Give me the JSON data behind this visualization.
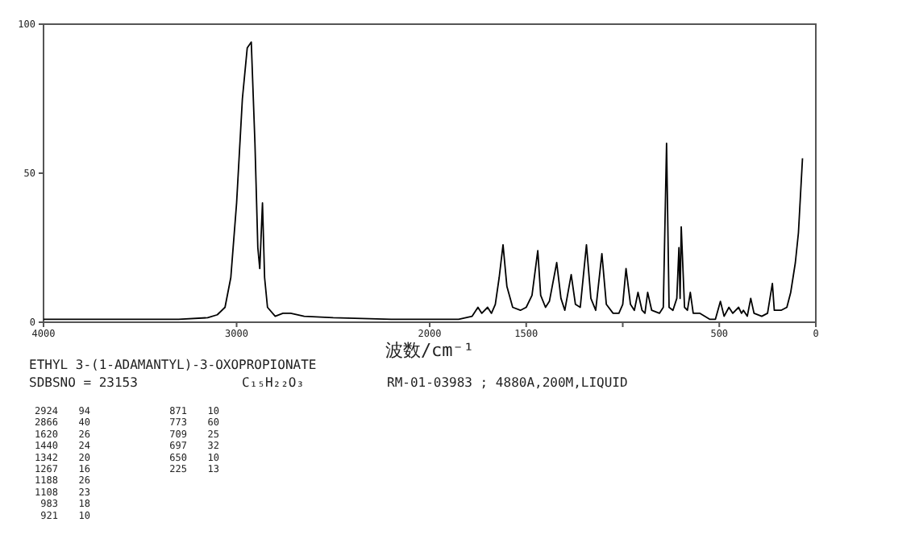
{
  "chart_data": {
    "type": "line",
    "title": "ETHYL 3-(1-ADAMANTYL)-3-OXOPROPIONATE",
    "xlabel": "波数/cm⁻¹",
    "x": [
      4000,
      3600,
      3300,
      3150,
      3100,
      3060,
      3030,
      3000,
      2970,
      2945,
      2924,
      2905,
      2890,
      2880,
      2866,
      2855,
      2840,
      2800,
      2760,
      2720,
      2650,
      2500,
      2200,
      2000,
      1850,
      1780,
      1750,
      1730,
      1700,
      1680,
      1660,
      1640,
      1620,
      1600,
      1570,
      1530,
      1500,
      1470,
      1440,
      1425,
      1400,
      1380,
      1342,
      1320,
      1300,
      1267,
      1245,
      1220,
      1188,
      1165,
      1140,
      1108,
      1085,
      1050,
      1020,
      1000,
      983,
      960,
      940,
      921,
      900,
      885,
      871,
      850,
      810,
      790,
      773,
      760,
      740,
      720,
      709,
      703,
      697,
      680,
      665,
      650,
      635,
      600,
      550,
      520,
      494,
      475,
      450,
      430,
      400,
      385,
      375,
      355,
      337,
      320,
      280,
      250,
      225,
      215,
      180,
      150,
      130,
      106,
      90,
      69
    ],
    "series": [
      {
        "color": "#000000",
        "values": [
          1,
          1,
          1,
          1.5,
          2.5,
          5,
          15,
          40,
          75,
          92,
          94,
          60,
          25,
          18,
          40,
          15,
          5,
          2,
          3,
          3,
          2,
          1.5,
          1,
          1,
          1,
          2,
          5,
          3,
          5,
          3,
          6,
          15,
          26,
          12,
          5,
          4,
          5,
          9,
          24,
          9,
          5,
          7,
          20,
          8,
          4,
          16,
          6,
          5,
          26,
          8,
          4,
          23,
          6,
          3,
          3,
          6,
          18,
          6,
          4,
          10,
          4,
          3,
          10,
          4,
          3,
          5,
          60,
          5,
          4,
          8,
          25,
          8,
          32,
          5,
          4,
          10,
          3,
          3,
          1,
          1,
          7,
          2,
          5,
          3,
          5,
          3,
          4,
          2,
          8,
          3,
          2,
          3,
          13,
          4,
          4,
          5,
          10,
          20,
          30,
          55
        ]
      }
    ],
    "xlim": [
      4000,
      0
    ],
    "xticks": [
      4000,
      3000,
      2000,
      1500,
      {
        "value": 1000,
        "label": null
      },
      500,
      0
    ],
    "ylim": [
      0,
      100
    ],
    "yticks": [
      0,
      50,
      100
    ],
    "annotations": [
      "SDBSNO = 23153",
      "C₁₅H₂₂O₃",
      "RM-01-03983 ; 4880A,200M,LIQUID",
      "2924 94",
      "2866 40",
      "1620 26",
      "1440 24",
      "1342 20",
      "1267 16",
      "1188 26",
      "1108 23",
      "983 18",
      "921 10",
      "871 10",
      "773 60",
      "709 25",
      "697 32",
      "650 10",
      "225 13"
    ]
  }
}
